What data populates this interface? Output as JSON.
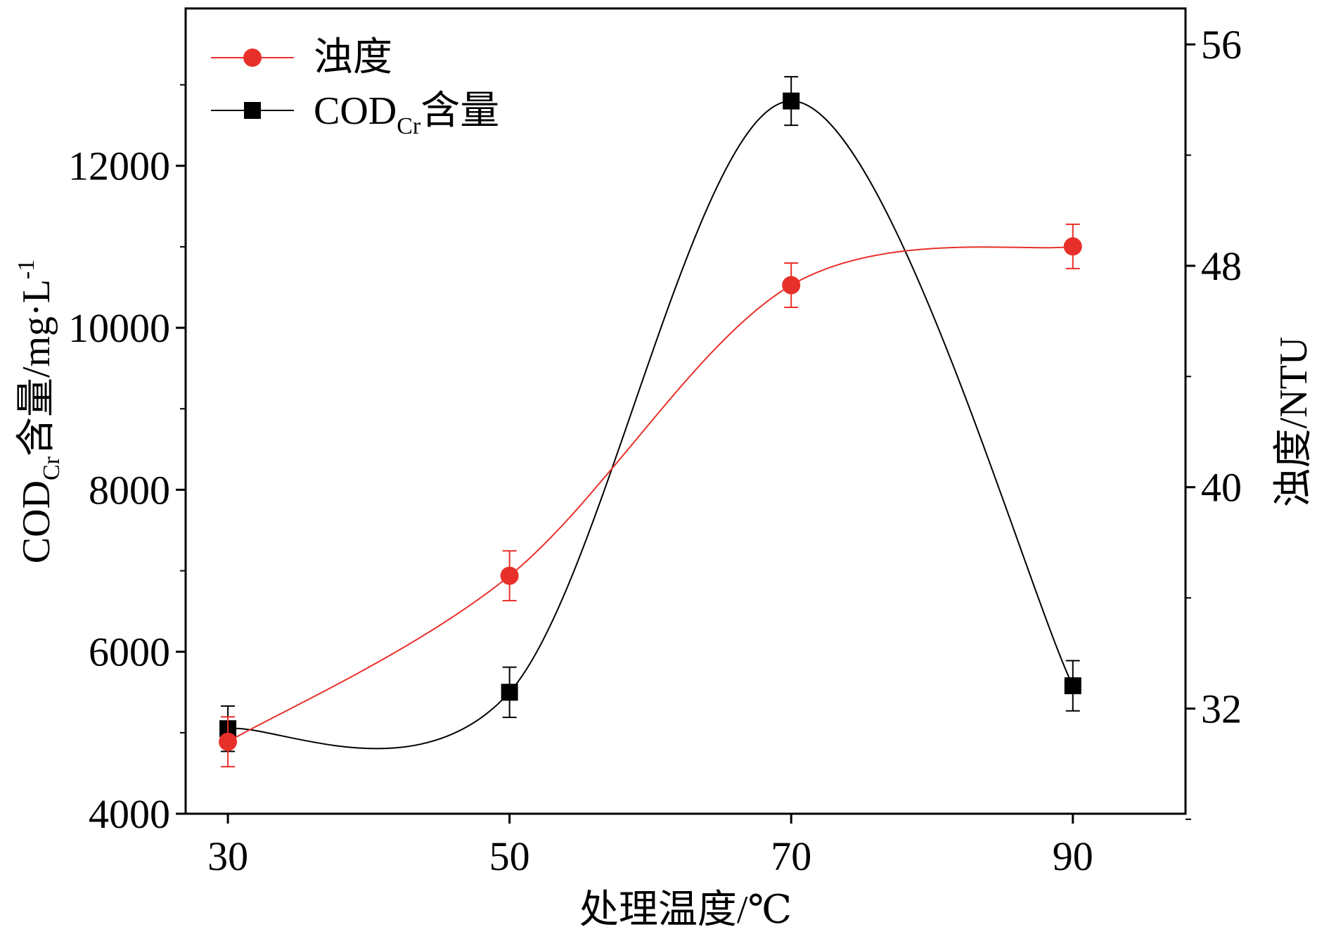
{
  "chart_data": {
    "type": "line",
    "xlabel": "处理温度/℃",
    "ylabel_left": {
      "main": "COD",
      "sub": "Cr",
      "rest": "含量/mg·L",
      "sup": "-1"
    },
    "ylabel_right": "浊度/NTU",
    "x_ticks": [
      "30",
      "50",
      "70",
      "90"
    ],
    "y_left_ticks": [
      "4000",
      "6000",
      "8000",
      "10000",
      "12000"
    ],
    "y_right_ticks": [
      "32",
      "40",
      "48",
      "56"
    ],
    "x": [
      30,
      50,
      70,
      90
    ],
    "xlim": [
      27,
      98
    ],
    "ylim_left": [
      4000,
      13943
    ],
    "ylim_right": [
      28.2,
      57.3
    ],
    "series": [
      {
        "name": "浊度",
        "axis": "right",
        "color": "#e8302a",
        "marker": "circle",
        "values": [
          30.8,
          36.8,
          47.3,
          48.7
        ],
        "errors": [
          0.9,
          0.9,
          0.8,
          0.8
        ]
      },
      {
        "name_main": "COD",
        "name_sub": "Cr",
        "name_rest": "含量",
        "axis": "left",
        "color": "#000000",
        "marker": "square",
        "values": [
          5050,
          5500,
          12800,
          5580
        ],
        "errors": [
          280,
          310,
          300,
          310
        ]
      }
    ],
    "legend_position": "top-left",
    "grid": false
  }
}
